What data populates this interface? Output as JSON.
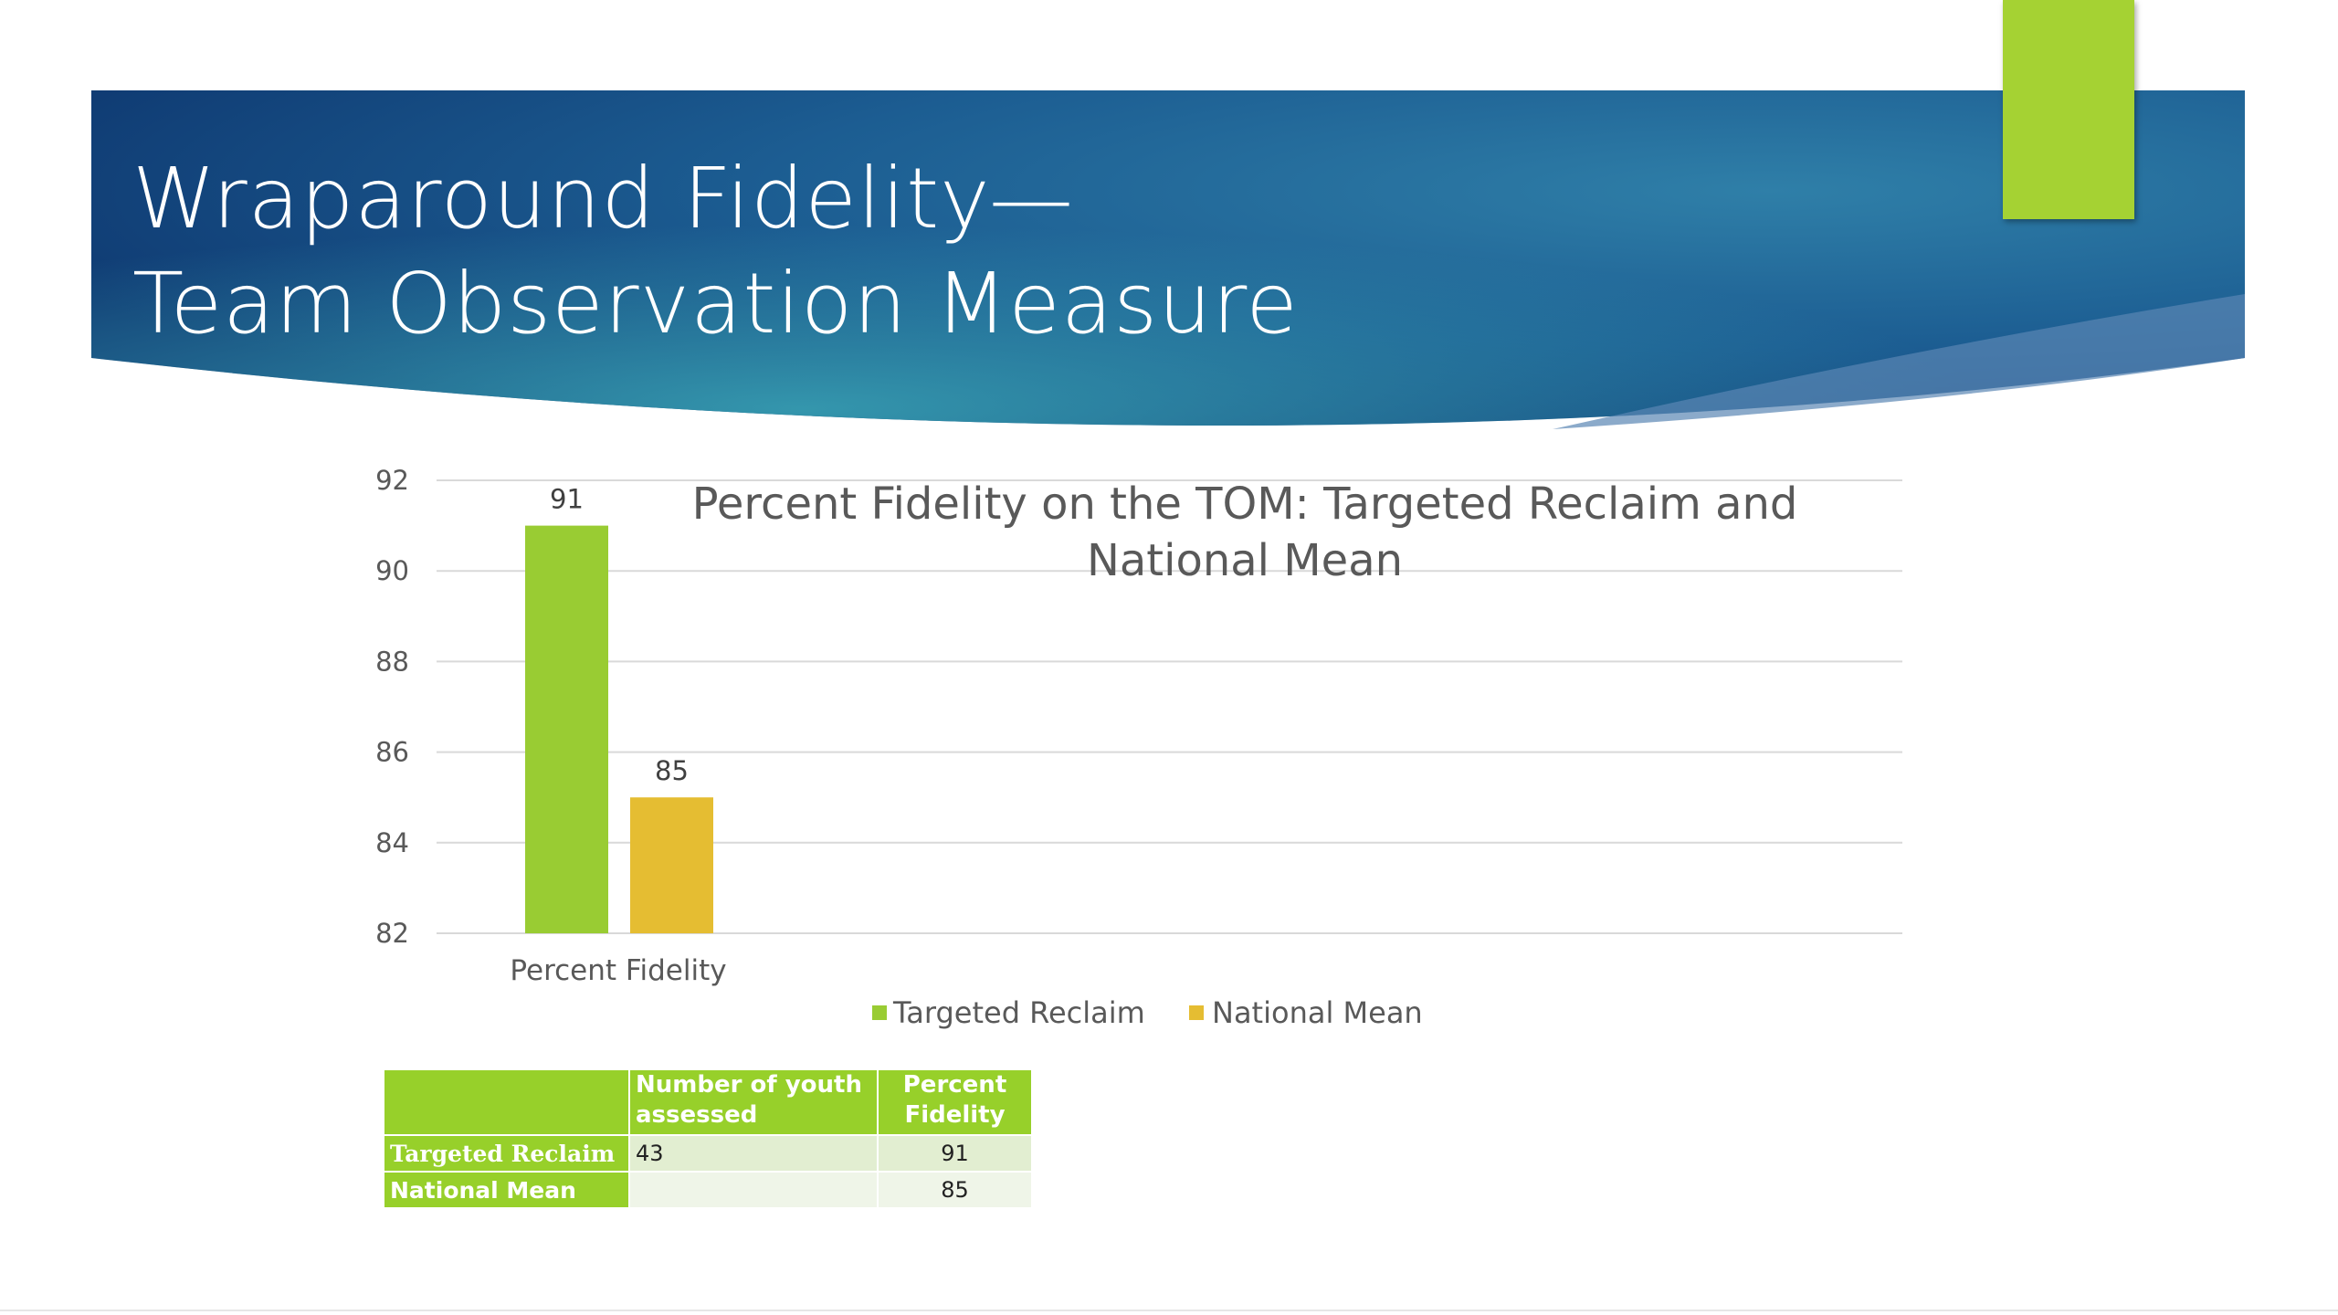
{
  "slide": {
    "title_line1": "Wraparound Fidelity—",
    "title_line2": "Team Observation Measure",
    "accent_color": "#a5d233"
  },
  "chart_data": {
    "type": "bar",
    "title_line1": "Percent Fidelity on the TOM: Targeted Reclaim and",
    "title_line2": "National Mean",
    "categories": [
      "Percent Fidelity"
    ],
    "series": [
      {
        "name": "Targeted Reclaim",
        "values": [
          91
        ],
        "color": "#99cc33"
      },
      {
        "name": "National Mean",
        "values": [
          85
        ],
        "color": "#e5bd32"
      }
    ],
    "ylim": [
      82,
      92
    ],
    "yticks": [
      "82",
      "84",
      "86",
      "88",
      "90",
      "92"
    ],
    "data_labels": [
      "91",
      "85"
    ],
    "grid": true,
    "legend_position": "bottom"
  },
  "table": {
    "headers": [
      "",
      "Number of youth assessed",
      "Percent Fidelity"
    ],
    "rows": [
      [
        "Targeted Reclaim",
        "43",
        "91"
      ],
      [
        "National Mean",
        "",
        "85"
      ]
    ]
  }
}
